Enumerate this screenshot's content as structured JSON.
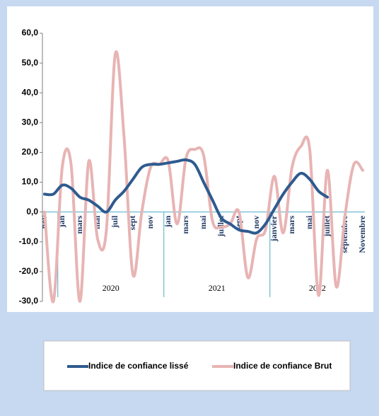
{
  "chart_data": {
    "type": "line",
    "categories": [
      "nov",
      null,
      "jan",
      null,
      "mars",
      null,
      "mai",
      null,
      "juil",
      null,
      "sept",
      null,
      "nov",
      null,
      "jan",
      null,
      "mars",
      null,
      "mai",
      null,
      "juillet",
      null,
      "sept",
      null,
      "nov",
      null,
      "janvier",
      null,
      "mars",
      null,
      "mai",
      null,
      "juillet",
      null,
      "septembre",
      null,
      "Novembre"
    ],
    "x_groups": [
      "2020",
      "2021",
      "2022"
    ],
    "series": [
      {
        "name": "Indice de confiance lissé",
        "color": "#2e5b8f",
        "values": [
          6,
          6,
          9,
          8,
          5,
          4,
          2,
          0,
          4,
          7,
          11,
          15,
          16,
          16,
          16.5,
          17,
          17.5,
          16,
          10,
          4,
          -2,
          -4,
          -6,
          -6.5,
          -7,
          -4,
          1,
          6,
          10,
          13,
          11,
          7,
          5,
          null,
          null,
          null,
          null
        ]
      },
      {
        "name": "Indice de confiance Brut",
        "color": "#e8b4b4",
        "values": [
          0,
          -30,
          15,
          16,
          -30,
          17,
          -9,
          -6,
          53,
          25,
          -21,
          0,
          15,
          16,
          17,
          -4,
          18,
          21,
          19,
          -3,
          -5,
          -4,
          0,
          -22,
          -9,
          -6,
          12,
          -7,
          15,
          22,
          21,
          -28,
          14,
          -25,
          -1,
          16,
          14
        ]
      }
    ],
    "ylim": [
      -30,
      60
    ],
    "yticks": [
      {
        "value": -30,
        "label": "-30,0"
      },
      {
        "value": -20,
        "label": "-20,0"
      },
      {
        "value": -10,
        "label": "-10,0"
      },
      {
        "value": 0,
        "label": "0,0"
      },
      {
        "value": 10,
        "label": "10,0"
      },
      {
        "value": 20,
        "label": "20,0"
      },
      {
        "value": 30,
        "label": "30,0"
      },
      {
        "value": 40,
        "label": "40,0"
      },
      {
        "value": 50,
        "label": "50,0"
      },
      {
        "value": 60,
        "label": "60,0"
      }
    ],
    "legend": "bottom"
  }
}
